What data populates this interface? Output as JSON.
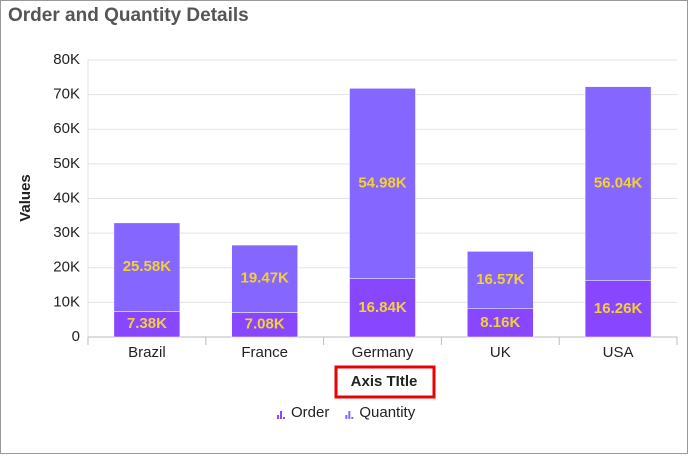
{
  "chart_data": {
    "type": "stacked-bar",
    "title": "Order and Quantity Details",
    "x_label": "Axis TItle",
    "y_label": "Values",
    "categories": [
      "Brazil",
      "France",
      "Germany",
      "UK",
      "USA"
    ],
    "series": [
      {
        "name": "Order",
        "color": "#8847ff",
        "values": [
          7380,
          7080,
          16840,
          8160,
          16260
        ],
        "value_labels": [
          "7.38K",
          "7.08K",
          "16.84K",
          "8.16K",
          "16.26K"
        ]
      },
      {
        "name": "Quantity",
        "color": "#8566ff",
        "values": [
          25580,
          19470,
          54980,
          16570,
          56040
        ],
        "value_labels": [
          "25.58K",
          "19.47K",
          "54.98K",
          "16.57K",
          "56.04K"
        ]
      }
    ],
    "ylim": [
      0,
      80000
    ],
    "yticks": [
      0,
      {
        "value": 10000,
        "label": "10K"
      },
      {
        "value": 20000,
        "label": "20K"
      },
      {
        "value": 30000,
        "label": "30K"
      },
      {
        "value": 40000,
        "label": "40K"
      },
      {
        "value": 50000,
        "label": "50K"
      },
      {
        "value": 60000,
        "label": "60K"
      },
      {
        "value": 70000,
        "label": "70K"
      },
      {
        "value": 80000,
        "label": "80K"
      }
    ],
    "grid": true
  }
}
